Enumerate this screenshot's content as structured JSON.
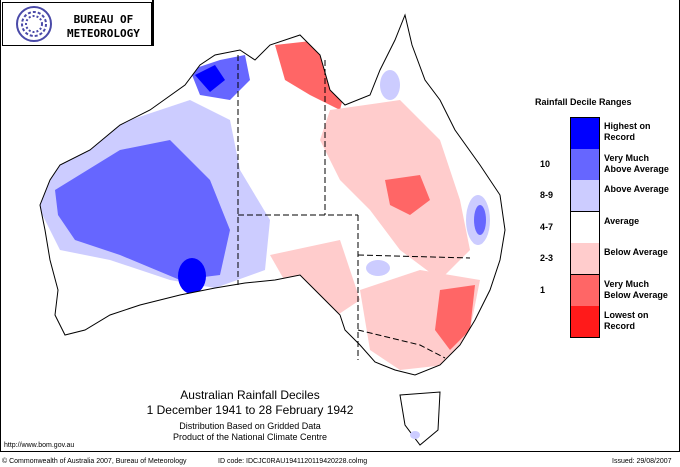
{
  "logo": {
    "line1": "BUREAU OF",
    "line2": "METEOROLOGY"
  },
  "legend": {
    "title": "Rainfall Decile Ranges",
    "items": [
      {
        "label": "Highest on Record",
        "decile": "",
        "color": "#0000ff"
      },
      {
        "label": "Very Much Above Average",
        "decile": "10",
        "color": "#6666ff"
      },
      {
        "label": "Above Average",
        "decile": "8-9",
        "color": "#ccccff"
      },
      {
        "label": "Average",
        "decile": "4-7",
        "color": "#ffffff"
      },
      {
        "label": "Below Average",
        "decile": "2-3",
        "color": "#ffcccc"
      },
      {
        "label": "Very Much Below Average",
        "decile": "1",
        "color": "#ff6666"
      },
      {
        "label": "Lowest on Record",
        "decile": "",
        "color": "#ff1a1a"
      }
    ]
  },
  "title": {
    "line1": "Australian Rainfall Deciles",
    "line2": "1 December 1941 to 28 February 1942",
    "line3": "Distribution Based on Gridded Data",
    "line4": "Product of the National Climate Centre"
  },
  "footer": {
    "url": "http://www.bom.gov.au",
    "copyright": "© Commonwealth of Australia 2007, Bureau of Meteorology",
    "id_code": "ID code: IDCJC0RAU1941120119420228.colmg",
    "issued": "Issued: 29/08/2007"
  }
}
